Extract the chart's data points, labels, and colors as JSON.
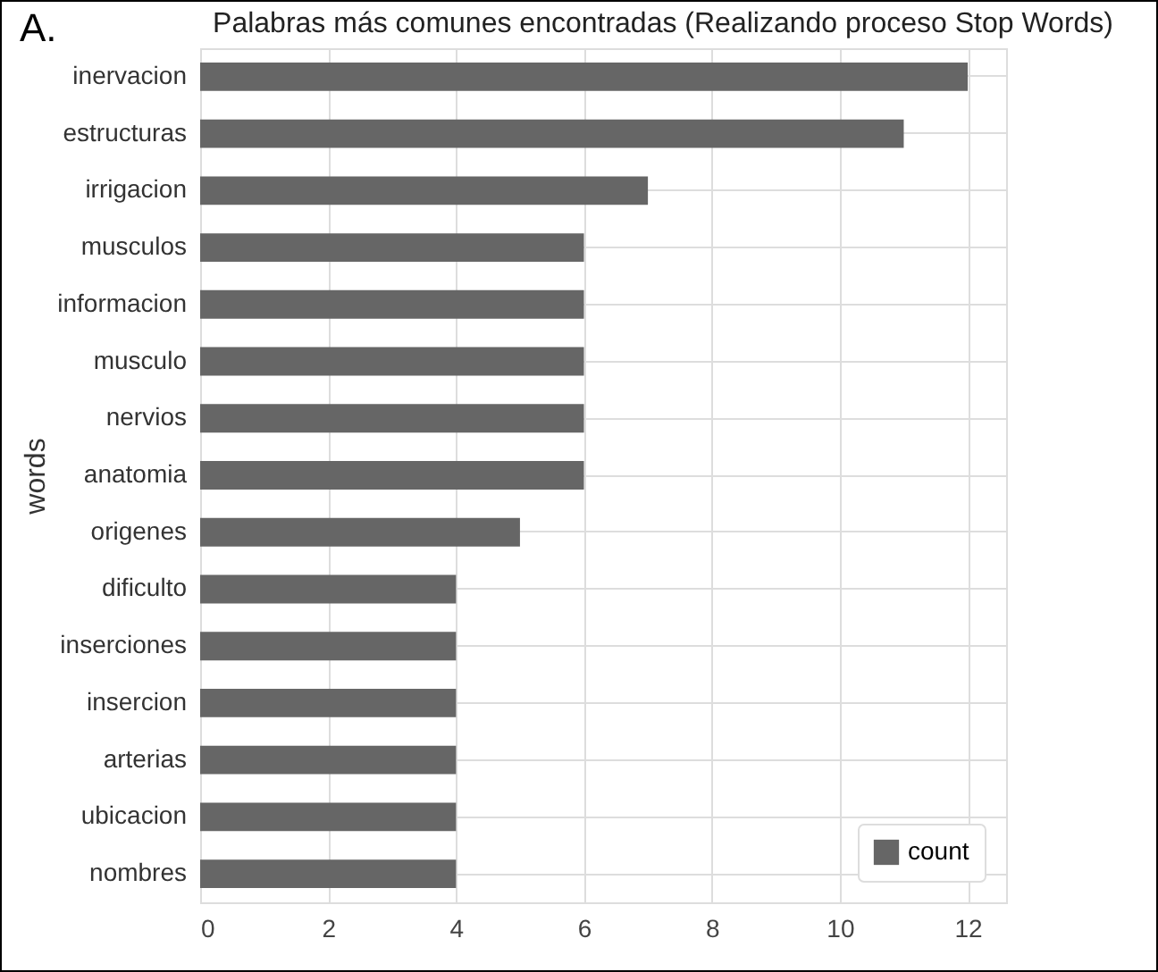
{
  "chart_data": {
    "type": "bar",
    "orientation": "horizontal",
    "title": "Palabras más comunes encontradas (Realizando proceso Stop Words)",
    "annotations": [
      "A."
    ],
    "ylabel": "words",
    "categories": [
      "inervacion",
      "estructuras",
      "irrigacion",
      "musculos",
      "informacion",
      "musculo",
      "nervios",
      "anatomia",
      "origenes",
      "dificulto",
      "inserciones",
      "insercion",
      "arterias",
      "ubicacion",
      "nombres"
    ],
    "series": [
      {
        "name": "count",
        "color": "#666666",
        "values": [
          12,
          11,
          7,
          6,
          6,
          6,
          6,
          6,
          5,
          4,
          4,
          4,
          4,
          4,
          4
        ]
      }
    ],
    "xlim": [
      0,
      12.6
    ],
    "xticks": [
      0,
      2,
      4,
      6,
      8,
      10,
      12
    ],
    "grid": true,
    "legend": "bottom right"
  }
}
